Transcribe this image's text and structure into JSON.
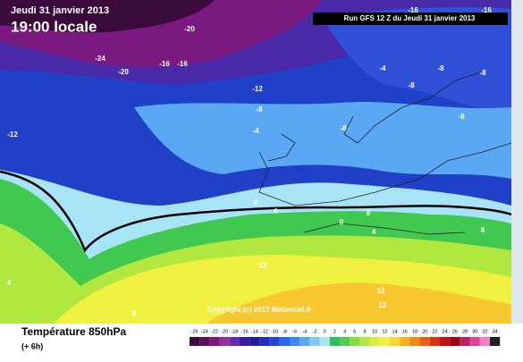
{
  "header": {
    "date": "Jeudi 31 janvier 2013",
    "time": "19:00 locale",
    "run": "Run GFS 12 Z du Jeudi 31 janvier 2013"
  },
  "map": {
    "copyright": "Copyright (c) 2012 Meteociel.fr",
    "contour_labels": [
      "-20",
      "-24",
      "-20",
      "-16",
      "-16",
      "-16",
      "-16",
      "-12",
      "-12",
      "-8",
      "-8",
      "-8",
      "-8",
      "-8",
      "-8",
      "-4",
      "-4",
      "0",
      "4",
      "0",
      "8",
      "4",
      "12",
      "12",
      "12",
      "8",
      "4",
      "8"
    ]
  },
  "footer": {
    "title": "Température 850hPa",
    "step": "(+ 6h)"
  },
  "legend": {
    "ticks": [
      -26,
      -24,
      -22,
      -20,
      -18,
      -16,
      -14,
      -12,
      -10,
      -8,
      -6,
      -4,
      -2,
      0,
      2,
      4,
      6,
      8,
      10,
      12,
      14,
      16,
      18,
      20,
      22,
      24,
      26,
      28,
      30,
      32,
      34
    ],
    "colors": [
      "#3a0a3a",
      "#5a0f5e",
      "#7a1a80",
      "#9a2aa0",
      "#6a2ab0",
      "#3a1aa8",
      "#1e1e9a",
      "#1e30c0",
      "#1e48d8",
      "#2a66e8",
      "#3c88f0",
      "#5aa8f4",
      "#80c8f8",
      "#a8e4f8",
      "#30c060",
      "#50d050",
      "#80e040",
      "#b0e840",
      "#d8f040",
      "#f0f040",
      "#f8d830",
      "#f8b020",
      "#f08818",
      "#e86010",
      "#e03010",
      "#c81010",
      "#a00010",
      "#c02060",
      "#e040a0",
      "#f080c8",
      "#202020"
    ]
  }
}
